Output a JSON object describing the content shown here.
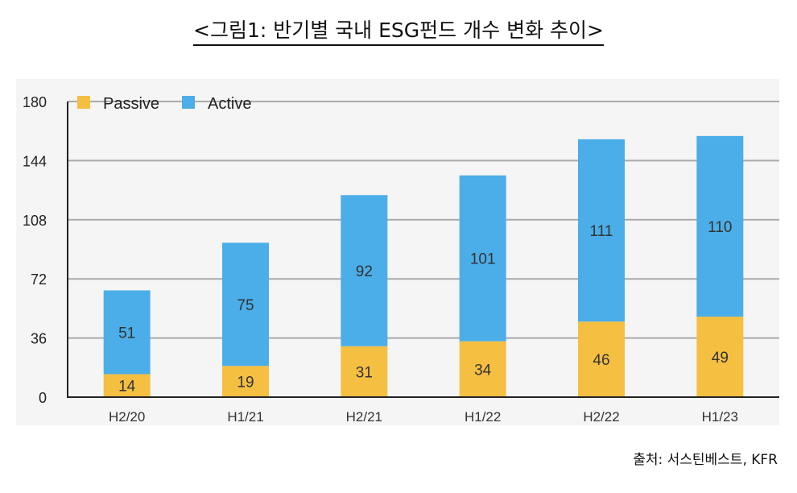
{
  "title": "<그림1: 반기별 국내 ESG펀드 개수 변화 추이>",
  "source": "출처: 서스틴베스트, KFR",
  "chart_data": {
    "type": "bar",
    "stacked": true,
    "categories": [
      "H2/20",
      "H1/21",
      "H2/21",
      "H1/22",
      "H2/22",
      "H1/23"
    ],
    "series": [
      {
        "name": "Passive",
        "color": "#F5BF42",
        "values": [
          14,
          19,
          31,
          34,
          46,
          49
        ]
      },
      {
        "name": "Active",
        "color": "#4BAEE8",
        "values": [
          51,
          75,
          92,
          101,
          111,
          110
        ]
      }
    ],
    "ylim": [
      0,
      180
    ],
    "yticks": [
      0,
      36,
      72,
      108,
      144,
      180
    ],
    "grid": true,
    "legend_position": "top-left",
    "background": "#F5F5F5"
  }
}
